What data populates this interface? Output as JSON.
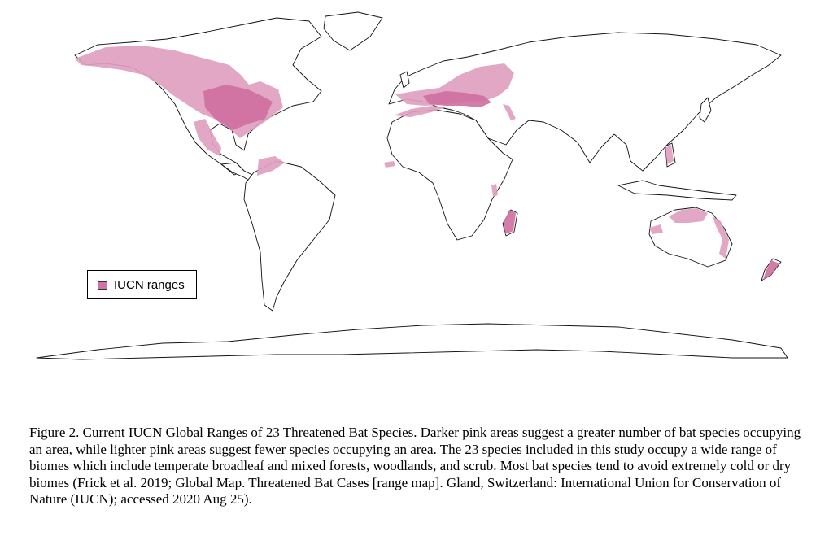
{
  "legend": {
    "label": "IUCN ranges",
    "swatch_color": "#d273a6"
  },
  "colors": {
    "light_range": "#de9fbf",
    "dark_range": "#cf6fa0",
    "coastline": "#111111"
  },
  "caption": "Figure 2. Current IUCN Global Ranges of 23 Threatened Bat Species. Darker pink areas suggest a greater number of bat species occupying an area, while lighter pink areas suggest fewer species occupying an area. The 23 species included in this study occupy a wide range of biomes which include temperate broadleaf and mixed forests, woodlands, and scrub. Most bat species tend to avoid extremely cold or dry biomes (Frick et al. 2019; Global Map. Threatened Bat Cases [range map]. Gland, Switzerland: International Union for Conservation of Nature (IUCN); accessed 2020 Aug 25)."
}
